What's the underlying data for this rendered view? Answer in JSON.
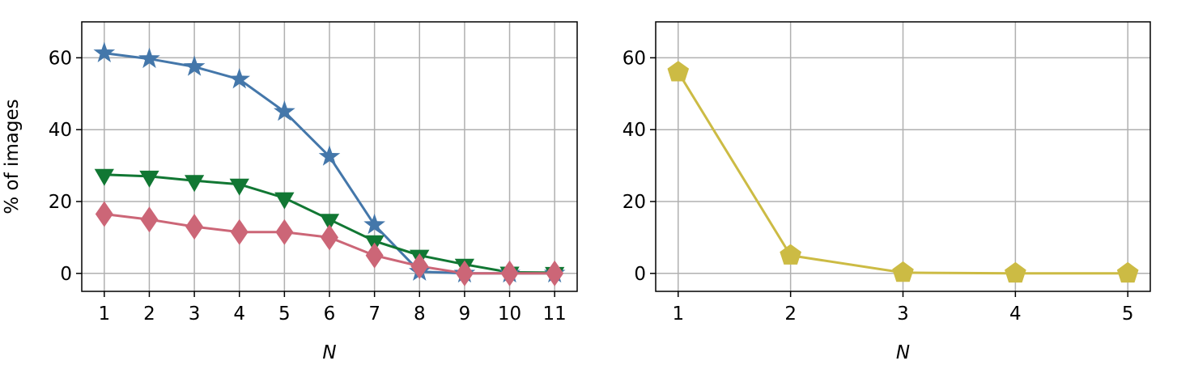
{
  "chart_data": [
    {
      "type": "line",
      "xlabel": "N",
      "ylabel": "% of images",
      "x": [
        1,
        2,
        3,
        4,
        5,
        6,
        7,
        8,
        9,
        10,
        11
      ],
      "xlim": [
        0.5,
        11.5
      ],
      "ylim": [
        -5,
        70
      ],
      "xticks": [
        1,
        2,
        3,
        4,
        5,
        6,
        7,
        8,
        9,
        10,
        11
      ],
      "yticks": [
        0,
        20,
        40,
        60
      ],
      "grid": true,
      "series": [
        {
          "color": "#4477aa",
          "marker": "star",
          "values": [
            61.3,
            59.7,
            57.5,
            54,
            45,
            32.5,
            13.5,
            0.5,
            0,
            0,
            0
          ]
        },
        {
          "color": "#117733",
          "marker": "triangle-down",
          "values": [
            27.5,
            27,
            25.8,
            24.8,
            21,
            15,
            9,
            5,
            2.5,
            0.3,
            0.2
          ]
        },
        {
          "color": "#cc6677",
          "marker": "diamond",
          "values": [
            16.5,
            15,
            13,
            11.5,
            11.5,
            10,
            5,
            2,
            0,
            0,
            0
          ]
        }
      ]
    },
    {
      "type": "line",
      "xlabel": "N",
      "x": [
        1,
        2,
        3,
        4,
        5
      ],
      "xlim": [
        0.8,
        5.2
      ],
      "ylim": [
        -5,
        70
      ],
      "xticks": [
        1,
        2,
        3,
        4,
        5
      ],
      "yticks": [
        0,
        20,
        40,
        60
      ],
      "grid": true,
      "series": [
        {
          "color": "#ccbb44",
          "marker": "pentagon",
          "values": [
            56,
            5,
            0.2,
            0,
            0
          ]
        }
      ]
    }
  ]
}
